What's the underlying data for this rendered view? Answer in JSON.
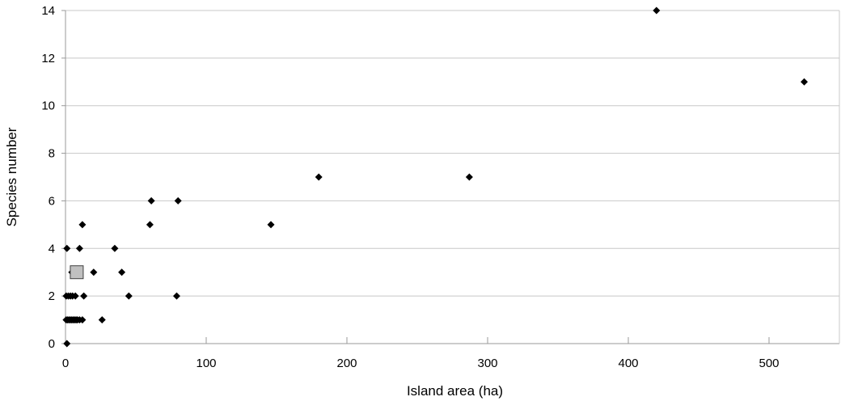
{
  "chart_data": {
    "type": "scatter",
    "title": "",
    "xlabel": "Island area (ha)",
    "ylabel": "Species number",
    "xlim": [
      0,
      550
    ],
    "ylim": [
      0,
      14
    ],
    "x_ticks": [
      0,
      100,
      200,
      300,
      400,
      500
    ],
    "y_ticks": [
      0,
      2,
      4,
      6,
      8,
      10,
      12,
      14
    ],
    "grid": "horizontal",
    "legend": "none",
    "colors": {
      "points": "#000000",
      "highlight_fill": "#c0c0c0",
      "grid": "#c8c8c8",
      "axis": "#999999"
    },
    "series": [
      {
        "marker": "diamond",
        "points": [
          {
            "x": 1,
            "y": 0
          },
          {
            "x": 0.5,
            "y": 1
          },
          {
            "x": 1.5,
            "y": 1
          },
          {
            "x": 2.5,
            "y": 1
          },
          {
            "x": 3.5,
            "y": 1
          },
          {
            "x": 4.5,
            "y": 1
          },
          {
            "x": 5.5,
            "y": 1
          },
          {
            "x": 6.5,
            "y": 1
          },
          {
            "x": 7.5,
            "y": 1
          },
          {
            "x": 8.5,
            "y": 1
          },
          {
            "x": 10,
            "y": 1
          },
          {
            "x": 12,
            "y": 1
          },
          {
            "x": 26,
            "y": 1
          },
          {
            "x": 0.5,
            "y": 2
          },
          {
            "x": 2,
            "y": 2
          },
          {
            "x": 3.5,
            "y": 2
          },
          {
            "x": 5,
            "y": 2
          },
          {
            "x": 7,
            "y": 2
          },
          {
            "x": 13,
            "y": 2
          },
          {
            "x": 45,
            "y": 2
          },
          {
            "x": 79,
            "y": 2
          },
          {
            "x": 4.5,
            "y": 3
          },
          {
            "x": 20,
            "y": 3
          },
          {
            "x": 40,
            "y": 3
          },
          {
            "x": 1,
            "y": 4
          },
          {
            "x": 10,
            "y": 4
          },
          {
            "x": 35,
            "y": 4
          },
          {
            "x": 12,
            "y": 5
          },
          {
            "x": 60,
            "y": 5
          },
          {
            "x": 146,
            "y": 5
          },
          {
            "x": 61,
            "y": 6
          },
          {
            "x": 80,
            "y": 6
          },
          {
            "x": 180,
            "y": 7
          },
          {
            "x": 287,
            "y": 7
          },
          {
            "x": 525,
            "y": 11
          },
          {
            "x": 420,
            "y": 14
          }
        ]
      },
      {
        "marker": "square",
        "points": [
          {
            "x": 8,
            "y": 3
          }
        ]
      }
    ]
  }
}
